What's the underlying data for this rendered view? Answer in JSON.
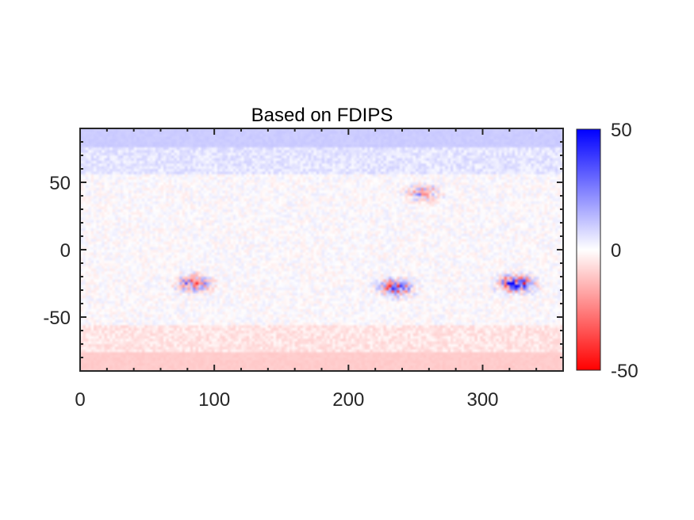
{
  "chart_data": {
    "type": "heatmap",
    "title": "Based on FDIPS",
    "xlabel": "",
    "ylabel": "",
    "xlim": [
      0,
      360
    ],
    "ylim": [
      -90,
      90
    ],
    "xticks": [
      0,
      100,
      200,
      300
    ],
    "xtick_labels": [
      "0",
      "100",
      "200",
      "300"
    ],
    "yticks": [
      50,
      0,
      -50
    ],
    "ytick_labels": [
      "50",
      "0",
      "-50"
    ],
    "colorbar": {
      "range": [
        -50,
        50
      ],
      "ticks": [
        50,
        0,
        -50
      ],
      "tick_labels": [
        "50",
        "0",
        "-50"
      ],
      "colormap": [
        "#ff0000",
        "#ffffff",
        "#0000ff"
      ]
    },
    "grid": false,
    "features": [
      {
        "region": "north polar cap",
        "lat_range": [
          75,
          90
        ],
        "value": 10
      },
      {
        "region": "south polar cap",
        "lat_range": [
          -90,
          -75
        ],
        "value": -10
      },
      {
        "region": "active region",
        "lon": 85,
        "lat": -25,
        "value": -30
      },
      {
        "region": "active region",
        "lon": 235,
        "lat": -28,
        "value": 35
      },
      {
        "region": "active region",
        "lon": 255,
        "lat": 42,
        "value": -20
      },
      {
        "region": "active region",
        "lon": 325,
        "lat": -25,
        "value": 45
      }
    ]
  },
  "colors": {
    "positive": "#0000ff",
    "negative": "#ff0000",
    "zero": "#ffffff",
    "axis": "#262626"
  }
}
